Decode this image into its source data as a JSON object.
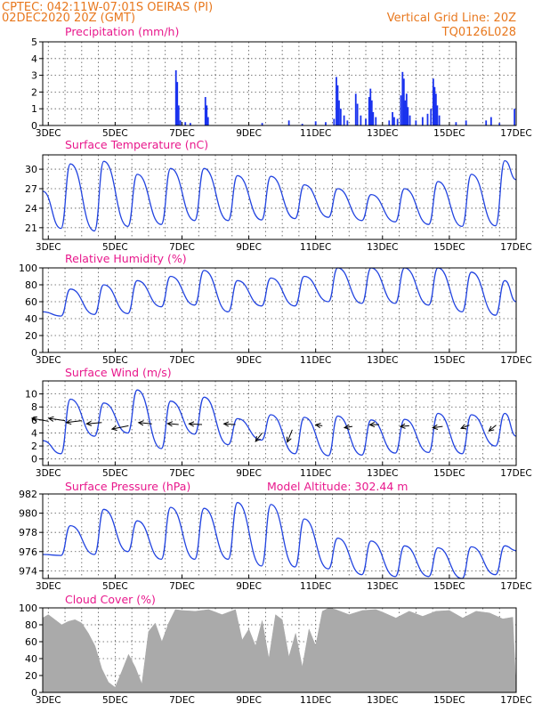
{
  "header": {
    "left_line1": "CPTEC:   042:11W-07:01S   OEIRAS (PI)",
    "left_line2": "02DEC2020 20Z (GMT)",
    "right_line1": "Vertical Grid Line: 20Z",
    "right_line2": "TQ0126L028"
  },
  "x_tick_labels": [
    "3DEC",
    "5DEC",
    "7DEC",
    "9DEC",
    "11DEC",
    "13DEC",
    "15DEC",
    "17DEC"
  ],
  "colors": {
    "line": "#2244e0",
    "bar": "#1a33ee",
    "cloud": "#aaaaaa",
    "arrow": "#000000",
    "title": "#e8188c",
    "header": "#e8781e"
  },
  "chart_data": [
    {
      "type": "bar",
      "title": "Precipitation (mm/h)",
      "ylim": [
        0,
        5
      ],
      "yticks": [
        0,
        1,
        2,
        3,
        4,
        5
      ],
      "grid": true,
      "x_start_day": 2.833,
      "x_end_day": 17,
      "events": [
        [
          6.82,
          3.3
        ],
        [
          6.86,
          2.6
        ],
        [
          6.9,
          1.2
        ],
        [
          6.95,
          0.3
        ],
        [
          7.1,
          0.2
        ],
        [
          7.25,
          0.15
        ],
        [
          7.7,
          1.7
        ],
        [
          7.74,
          1.2
        ],
        [
          7.78,
          0.5
        ],
        [
          9.4,
          0.15
        ],
        [
          10.2,
          0.3
        ],
        [
          10.6,
          0.1
        ],
        [
          11.0,
          0.25
        ],
        [
          11.3,
          0.2
        ],
        [
          11.55,
          0.4
        ],
        [
          11.62,
          2.9
        ],
        [
          11.66,
          2.4
        ],
        [
          11.7,
          1.5
        ],
        [
          11.75,
          1.0
        ],
        [
          11.85,
          0.6
        ],
        [
          11.95,
          0.3
        ],
        [
          12.2,
          1.9
        ],
        [
          12.25,
          1.3
        ],
        [
          12.35,
          0.6
        ],
        [
          12.5,
          0.4
        ],
        [
          12.6,
          1.7
        ],
        [
          12.64,
          2.2
        ],
        [
          12.68,
          1.5
        ],
        [
          12.72,
          0.8
        ],
        [
          12.8,
          0.5
        ],
        [
          13.2,
          0.3
        ],
        [
          13.3,
          0.8
        ],
        [
          13.35,
          0.5
        ],
        [
          13.45,
          0.4
        ],
        [
          13.55,
          1.8
        ],
        [
          13.6,
          3.2
        ],
        [
          13.64,
          2.8
        ],
        [
          13.68,
          1.5
        ],
        [
          13.72,
          1.9
        ],
        [
          13.76,
          1.1
        ],
        [
          13.82,
          0.6
        ],
        [
          14.0,
          0.3
        ],
        [
          14.2,
          0.5
        ],
        [
          14.35,
          0.7
        ],
        [
          14.45,
          1.0
        ],
        [
          14.52,
          2.8
        ],
        [
          14.56,
          2.3
        ],
        [
          14.6,
          1.9
        ],
        [
          14.64,
          1.2
        ],
        [
          14.7,
          0.6
        ],
        [
          15.2,
          0.2
        ],
        [
          15.5,
          0.3
        ],
        [
          16.1,
          0.3
        ],
        [
          16.25,
          0.5
        ],
        [
          16.5,
          0.15
        ],
        [
          16.95,
          1.0
        ]
      ]
    },
    {
      "type": "line",
      "title": "Surface Temperature (nC)",
      "ylim": [
        19.2,
        32.2
      ],
      "yticks": [
        21,
        24,
        27,
        30
      ],
      "grid": true,
      "x_start_day": 2.833,
      "x_end_day": 17,
      "daily_max": [
        30.8,
        31.2,
        29.2,
        30.1,
        30.1,
        29.0,
        28.9,
        27.6,
        27.0,
        26.1,
        27.0,
        28.1,
        29.2,
        31.3
      ],
      "daily_min": [
        20.9,
        20.5,
        21.2,
        21.5,
        22.1,
        22.1,
        22.2,
        22.4,
        22.6,
        22.1,
        21.9,
        21.5,
        21.2,
        21.3
      ],
      "first_value": 26.6,
      "last_value": 28.4
    },
    {
      "type": "line",
      "title": "Relative Humidity (%)",
      "ylim": [
        0,
        100
      ],
      "yticks": [
        0,
        20,
        40,
        60,
        80,
        100
      ],
      "grid": true,
      "x_start_day": 2.833,
      "x_end_day": 17,
      "daily_max": [
        75,
        80,
        85,
        90,
        97,
        85,
        88,
        90,
        100,
        100,
        100,
        100,
        95,
        85
      ],
      "daily_min": [
        43,
        45,
        46,
        54,
        56,
        48,
        55,
        55,
        60,
        58,
        58,
        56,
        48,
        44
      ],
      "first_value": 48,
      "last_value": 60
    },
    {
      "type": "line",
      "title": "Surface Wind (m/s)",
      "ylim": [
        -1,
        12
      ],
      "yticks": [
        0,
        2,
        4,
        6,
        8,
        10
      ],
      "grid": true,
      "x_start_day": 2.833,
      "x_end_day": 17,
      "daily_max": [
        9.2,
        8.6,
        10.6,
        8.9,
        9.5,
        6.2,
        6.8,
        6.4,
        6.6,
        6.0,
        6.1,
        7.0,
        6.8,
        7.0
      ],
      "daily_min": [
        0.8,
        3.5,
        4.0,
        1.6,
        3.8,
        2.2,
        2.9,
        0.8,
        0.5,
        0.6,
        0.9,
        1.0,
        0.8,
        2.0
      ],
      "first_value": 2.8,
      "last_value": 3.5,
      "barbs": [
        [
          3.0,
          5.8,
          5.9,
          -0.45
        ],
        [
          3.5,
          5.9,
          5.9,
          -0.35
        ],
        [
          4.0,
          5.9,
          5.6,
          0.3
        ],
        [
          4.6,
          5.6,
          5.5,
          0.2
        ],
        [
          5.4,
          5.1,
          6.0,
          0.5
        ],
        [
          6.1,
          5.4,
          4.8,
          -0.2
        ],
        [
          6.9,
          5.3,
          4.0,
          -0.15
        ],
        [
          7.6,
          5.3,
          4.7,
          -0.1
        ],
        [
          8.6,
          5.3,
          4.2,
          -0.1
        ],
        [
          9.4,
          4.0,
          2.4,
          1.3
        ],
        [
          10.3,
          4.5,
          1.8,
          1.9
        ],
        [
          11.2,
          5.1,
          2.4,
          -0.15
        ],
        [
          12.1,
          5.0,
          2.9,
          0.2
        ],
        [
          12.9,
          5.3,
          3.4,
          0.05
        ],
        [
          13.8,
          5.1,
          3.2,
          0.1
        ],
        [
          14.8,
          5.0,
          3.6,
          0.2
        ],
        [
          15.6,
          5.2,
          3.0,
          0.5
        ],
        [
          16.4,
          5.2,
          2.6,
          0.9
        ]
      ]
    },
    {
      "type": "line",
      "title": "Surface Pressure (hPa)",
      "annotation": "Model Altitude: 302.44 m",
      "ylim": [
        973.2,
        982
      ],
      "yticks": [
        974,
        976,
        978,
        980,
        982
      ],
      "grid": true,
      "x_start_day": 2.833,
      "x_end_day": 17,
      "daily_max": [
        978.7,
        980.4,
        979.2,
        980.6,
        980.5,
        981.1,
        980.9,
        979.4,
        977.4,
        977.1,
        976.6,
        976.4,
        976.5,
        976.6
      ],
      "daily_min": [
        975.6,
        975.7,
        976.0,
        975.2,
        975.2,
        975.2,
        974.5,
        974.4,
        974.2,
        973.6,
        973.4,
        973.4,
        973.2,
        973.6
      ],
      "first_value": 975.7,
      "last_value": 976.1
    },
    {
      "type": "area",
      "title": "Cloud Cover (%)",
      "ylim": [
        0,
        100
      ],
      "yticks": [
        0,
        20,
        40,
        60,
        80,
        100
      ],
      "grid": true,
      "x_start_day": 2.833,
      "x_end_day": 17,
      "x": [
        2.83,
        3.0,
        3.2,
        3.4,
        3.6,
        3.8,
        4.0,
        4.2,
        4.4,
        4.6,
        4.8,
        5.0,
        5.2,
        5.4,
        5.6,
        5.8,
        6.0,
        6.2,
        6.4,
        6.6,
        6.8,
        7.0,
        7.4,
        7.8,
        8.2,
        8.6,
        8.8,
        9.0,
        9.2,
        9.4,
        9.6,
        9.8,
        10.0,
        10.2,
        10.4,
        10.6,
        10.8,
        11.0,
        11.2,
        11.4,
        11.6,
        12.0,
        12.4,
        12.8,
        13.0,
        13.4,
        13.8,
        14.2,
        14.6,
        15.0,
        15.4,
        15.8,
        16.2,
        16.6,
        16.9,
        17.0
      ],
      "values": [
        88,
        92,
        86,
        80,
        84,
        86,
        82,
        70,
        55,
        28,
        12,
        6,
        25,
        45,
        30,
        10,
        72,
        82,
        60,
        82,
        98,
        97,
        96,
        98,
        92,
        98,
        62,
        75,
        55,
        85,
        40,
        92,
        86,
        42,
        70,
        30,
        75,
        55,
        96,
        100,
        98,
        92,
        97,
        98,
        95,
        88,
        96,
        90,
        96,
        97,
        88,
        96,
        94,
        87,
        89,
        0
      ]
    }
  ]
}
